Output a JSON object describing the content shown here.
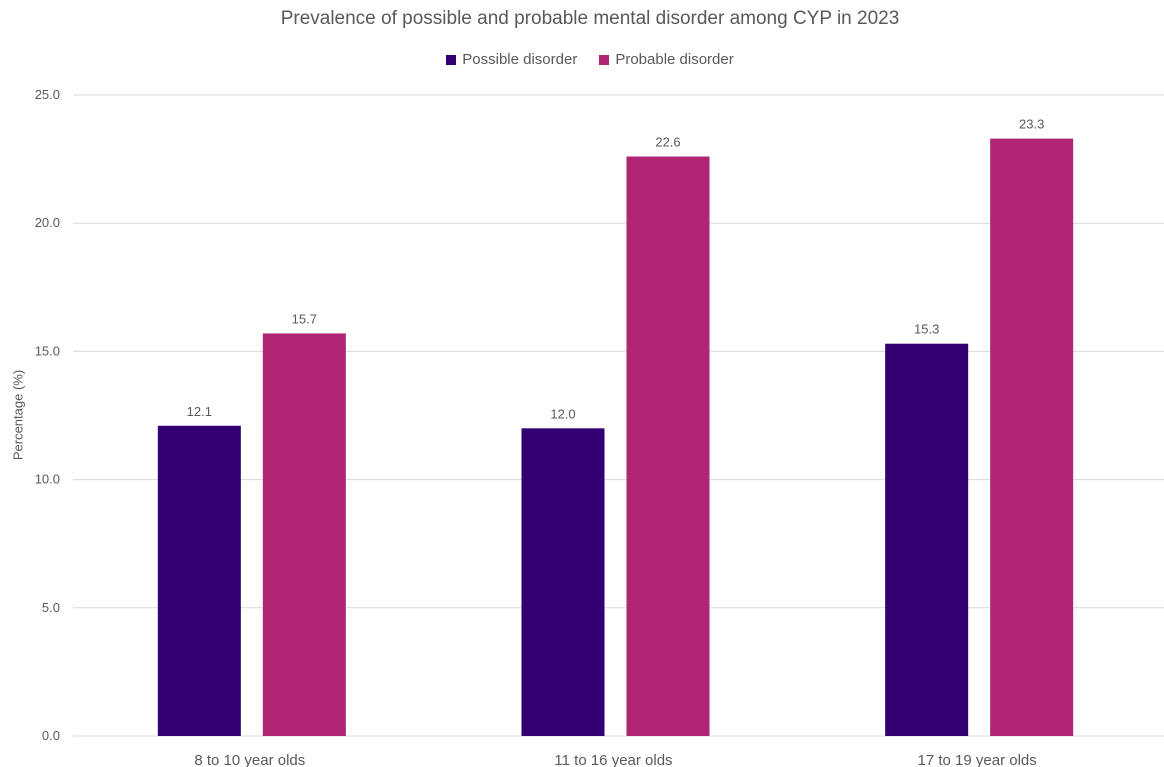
{
  "chart_data": {
    "type": "bar",
    "title": "Prevalence of possible and probable mental disorder among CYP in 2023",
    "xlabel": "",
    "ylabel": "Percentage (%)",
    "categories": [
      "8 to 10 year olds",
      "11 to 16 year olds",
      "17 to 19 year olds"
    ],
    "series": [
      {
        "name": "Possible disorder",
        "values": [
          12.1,
          12.0,
          15.3
        ],
        "color": "#330072"
      },
      {
        "name": "Probable disorder",
        "values": [
          15.7,
          22.6,
          23.3
        ],
        "color": "#AE2573"
      }
    ],
    "ylim": [
      0,
      25
    ],
    "yticks": [
      "0.0",
      "5.0",
      "10.0",
      "15.0",
      "20.0",
      "25.0"
    ],
    "data_labels": true,
    "grid": true,
    "legend_position": "top"
  },
  "colors": {
    "grid": "#d9d9d9",
    "text": "#595959"
  }
}
